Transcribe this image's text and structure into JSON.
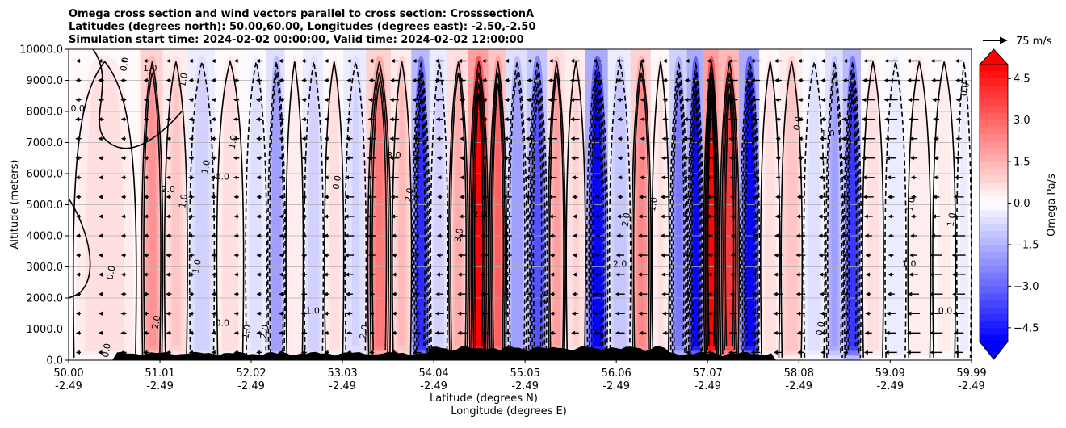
{
  "chart_data": {
    "type": "heatmap",
    "title_lines": [
      "Omega cross section and wind vectors parallel to cross section: CrosssectionA",
      "Latitudes (degrees north): 50.00,60.00, Longitudes (degrees east): -2.50,-2.50",
      "Simulation start time: 2024-02-02 00:00:00, Valid time: 2024-02-02 12:00:00"
    ],
    "ylabel": "Altitude (meters)",
    "xlabel_line1": "Latitude (degrees N)",
    "xlabel_line2": "Longitude (degrees E)",
    "ylim": [
      0,
      10000
    ],
    "y_ticks": [
      0,
      1000,
      2000,
      3000,
      4000,
      5000,
      6000,
      7000,
      8000,
      9000,
      10000
    ],
    "y_tick_labels": [
      "0.0",
      "1000.0",
      "2000.0",
      "3000.0",
      "4000.0",
      "5000.0",
      "6000.0",
      "7000.0",
      "8000.0",
      "9000.0",
      "10000.0"
    ],
    "x_ticks": [
      {
        "lat": "50.00",
        "lon": "-2.49"
      },
      {
        "lat": "51.01",
        "lon": "-2.49"
      },
      {
        "lat": "52.02",
        "lon": "-2.49"
      },
      {
        "lat": "53.03",
        "lon": "-2.49"
      },
      {
        "lat": "54.04",
        "lon": "-2.49"
      },
      {
        "lat": "55.05",
        "lon": "-2.49"
      },
      {
        "lat": "56.06",
        "lon": "-2.49"
      },
      {
        "lat": "57.07",
        "lon": "-2.49"
      },
      {
        "lat": "58.08",
        "lon": "-2.49"
      },
      {
        "lat": "59.09",
        "lon": "-2.49"
      },
      {
        "lat": "59.99",
        "lon": "-2.49"
      }
    ],
    "xlim": [
      50.0,
      59.99
    ],
    "grid": "horizontal",
    "colorbar": {
      "label": "Omega Pa/s",
      "range": [
        -5.0,
        5.0
      ],
      "levels_step": 0.25,
      "ticks": [
        4.5,
        3.0,
        1.5,
        0.0,
        -1.5,
        -3.0,
        -4.5
      ],
      "tick_labels": [
        "4.5",
        "3.0",
        "1.5",
        "0.0",
        "−1.5",
        "−3.0",
        "−4.5"
      ],
      "extend": "both"
    },
    "quiver_key": {
      "label": "75 m/s",
      "speed": 75
    },
    "omega_bands": [
      {
        "lat": 50.7,
        "omega": 0.6
      },
      {
        "lat": 50.9,
        "omega": 2.2
      },
      {
        "lat": 51.2,
        "omega": 1.0
      },
      {
        "lat": 51.45,
        "omega": -0.9
      },
      {
        "lat": 51.8,
        "omega": 0.7
      },
      {
        "lat": 52.1,
        "omega": -0.6
      },
      {
        "lat": 52.3,
        "omega": -2.0
      },
      {
        "lat": 52.5,
        "omega": 0.4
      },
      {
        "lat": 52.7,
        "omega": -1.0
      },
      {
        "lat": 52.95,
        "omega": 0.6
      },
      {
        "lat": 53.15,
        "omega": -0.8
      },
      {
        "lat": 53.45,
        "omega": 2.6
      },
      {
        "lat": 53.7,
        "omega": 1.3
      },
      {
        "lat": 53.9,
        "omega": -4.2
      },
      {
        "lat": 54.1,
        "omega": -1.0
      },
      {
        "lat": 54.3,
        "omega": 1.5
      },
      {
        "lat": 54.55,
        "omega": 5.0
      },
      {
        "lat": 54.75,
        "omega": 3.0
      },
      {
        "lat": 54.95,
        "omega": -2.0
      },
      {
        "lat": 55.2,
        "omega": -3.5
      },
      {
        "lat": 55.4,
        "omega": 1.8
      },
      {
        "lat": 55.6,
        "omega": 0.8
      },
      {
        "lat": 55.85,
        "omega": -5.0
      },
      {
        "lat": 56.1,
        "omega": -1.2
      },
      {
        "lat": 56.35,
        "omega": 2.4
      },
      {
        "lat": 56.55,
        "omega": 0.5
      },
      {
        "lat": 56.75,
        "omega": -2.6
      },
      {
        "lat": 56.95,
        "omega": -5.0
      },
      {
        "lat": 57.1,
        "omega": 5.0
      },
      {
        "lat": 57.3,
        "omega": 3.8
      },
      {
        "lat": 57.55,
        "omega": -4.8
      },
      {
        "lat": 57.75,
        "omega": 0.6
      },
      {
        "lat": 58.0,
        "omega": 1.2
      },
      {
        "lat": 58.25,
        "omega": -0.6
      },
      {
        "lat": 58.5,
        "omega": -1.8
      },
      {
        "lat": 58.65,
        "omega": -4.0
      },
      {
        "lat": 58.9,
        "omega": 0.6
      },
      {
        "lat": 59.15,
        "omega": -0.5
      },
      {
        "lat": 59.4,
        "omega": 0.4
      },
      {
        "lat": 59.7,
        "omega": 0.3
      },
      {
        "lat": 59.95,
        "omega": -0.3
      }
    ],
    "contour_labels": [
      {
        "text": "0.0",
        "lat": 50.1,
        "alt": 8000
      },
      {
        "text": "0.0",
        "lat": 50.45,
        "alt": 300
      },
      {
        "text": "0.0",
        "lat": 50.65,
        "alt": 9500
      },
      {
        "text": "1.0",
        "lat": 50.9,
        "alt": 9300
      },
      {
        "text": "2.0",
        "lat": 51.0,
        "alt": 1200
      },
      {
        "text": "1.0",
        "lat": 51.3,
        "alt": 9000
      },
      {
        "text": "2.0",
        "lat": 51.1,
        "alt": 5400
      },
      {
        "text": "1.0",
        "lat": 51.3,
        "alt": 5100
      },
      {
        "text": "1.0",
        "lat": 51.55,
        "alt": 6200
      },
      {
        "text": "0.0",
        "lat": 51.7,
        "alt": 5800
      },
      {
        "text": "1.0",
        "lat": 51.85,
        "alt": 7000
      },
      {
        "text": "1.0",
        "lat": 51.45,
        "alt": 3000
      },
      {
        "text": "0.0",
        "lat": 51.7,
        "alt": 1100
      },
      {
        "text": "1.0",
        "lat": 52.0,
        "alt": 900
      },
      {
        "text": "2.0",
        "lat": 52.2,
        "alt": 900
      },
      {
        "text": "1.0",
        "lat": 52.7,
        "alt": 1500
      },
      {
        "text": "0.0",
        "lat": 53.0,
        "alt": 5700
      },
      {
        "text": "2.0",
        "lat": 53.3,
        "alt": 900
      },
      {
        "text": "3.0",
        "lat": 53.6,
        "alt": 6500
      },
      {
        "text": "2.0",
        "lat": 53.8,
        "alt": 5300
      },
      {
        "text": "3.0",
        "lat": 54.35,
        "alt": 4000
      },
      {
        "text": "2.0",
        "lat": 54.55,
        "alt": 4600
      },
      {
        "text": "1.0",
        "lat": 55.3,
        "alt": 2000
      },
      {
        "text": "2.0",
        "lat": 56.2,
        "alt": 4500
      },
      {
        "text": "2.0",
        "lat": 56.1,
        "alt": 3000
      },
      {
        "text": "1.0",
        "lat": 56.5,
        "alt": 5000
      },
      {
        "text": "0.0",
        "lat": 58.1,
        "alt": 7600
      },
      {
        "text": "1.0",
        "lat": 58.4,
        "alt": 7200
      },
      {
        "text": "0.0",
        "lat": 58.35,
        "alt": 1000
      },
      {
        "text": "1.0",
        "lat": 59.35,
        "alt": 5000
      },
      {
        "text": "1.0",
        "lat": 59.3,
        "alt": 3000
      },
      {
        "text": "1.0",
        "lat": 59.8,
        "alt": 4500
      },
      {
        "text": "0.0",
        "lat": 59.95,
        "alt": 8700
      },
      {
        "text": "0.0",
        "lat": 59.7,
        "alt": 1500
      },
      {
        "text": "0.0",
        "lat": 50.5,
        "alt": 2800
      }
    ]
  }
}
